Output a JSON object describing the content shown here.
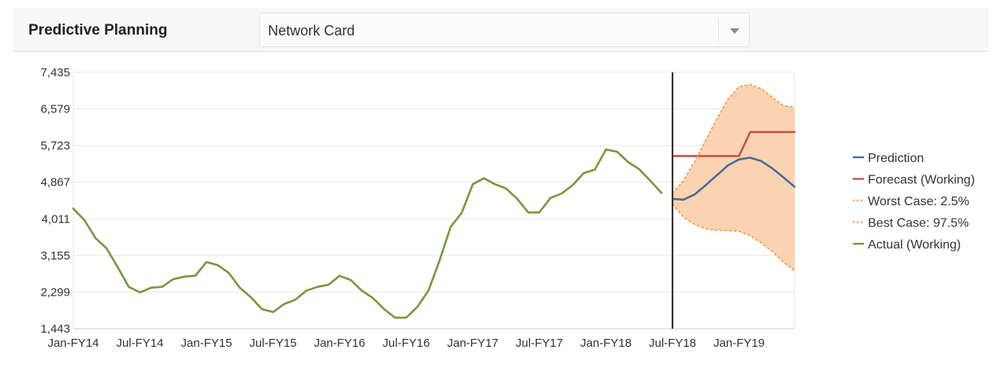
{
  "header": {
    "title": "Predictive Planning",
    "selected_item": "Network Card"
  },
  "chart_data": {
    "type": "line",
    "title": "",
    "xlabel": "",
    "ylabel": "",
    "ylim": [
      1443,
      7435
    ],
    "y_ticks": [
      "1,443",
      "2,299",
      "3,155",
      "4,011",
      "4,867",
      "5,723",
      "6,579",
      "7,435"
    ],
    "y_tick_values": [
      1443,
      2299,
      3155,
      4011,
      4867,
      5723,
      6579,
      7435
    ],
    "x_tick_labels": [
      "Jan-FY14",
      "Jul-FY14",
      "Jan-FY15",
      "Jul-FY15",
      "Jan-FY16",
      "Jul-FY16",
      "Jan-FY17",
      "Jul-FY17",
      "Jan-FY18",
      "Jul-FY18",
      "Jan-FY19"
    ],
    "period_labels": [
      "Jan-FY14",
      "Feb-FY14",
      "Mar-FY14",
      "Apr-FY14",
      "May-FY14",
      "Jun-FY14",
      "Jul-FY14",
      "Aug-FY14",
      "Sep-FY14",
      "Oct-FY14",
      "Nov-FY14",
      "Dec-FY14",
      "Jan-FY15",
      "Feb-FY15",
      "Mar-FY15",
      "Apr-FY15",
      "May-FY15",
      "Jun-FY15",
      "Jul-FY15",
      "Aug-FY15",
      "Sep-FY15",
      "Oct-FY15",
      "Nov-FY15",
      "Dec-FY15",
      "Jan-FY16",
      "Feb-FY16",
      "Mar-FY16",
      "Apr-FY16",
      "May-FY16",
      "Jun-FY16",
      "Jul-FY16",
      "Aug-FY16",
      "Sep-FY16",
      "Oct-FY16",
      "Nov-FY16",
      "Dec-FY16",
      "Jan-FY17",
      "Feb-FY17",
      "Mar-FY17",
      "Apr-FY17",
      "May-FY17",
      "Jun-FY17",
      "Jul-FY17",
      "Aug-FY17",
      "Sep-FY17",
      "Oct-FY17",
      "Nov-FY17",
      "Dec-FY17",
      "Jan-FY18",
      "Feb-FY18",
      "Mar-FY18",
      "Apr-FY18",
      "May-FY18",
      "Jun-FY18",
      "Jul-FY18",
      "Aug-FY18",
      "Sep-FY18",
      "Oct-FY18",
      "Nov-FY18",
      "Dec-FY18",
      "Jan-FY19",
      "Feb-FY19",
      "Mar-FY19",
      "Apr-FY19",
      "May-FY19",
      "Jun-FY19"
    ],
    "forecast_start": "Jul-FY18",
    "grid": true,
    "legend_position": "right",
    "series": [
      {
        "name": "Prediction",
        "color": "#4a6a9c",
        "style": "solid",
        "start": "Jul-FY18",
        "values": [
          4480,
          4460,
          4580,
          4800,
          5030,
          5260,
          5400,
          5440,
          5360,
          5190,
          4980,
          4760
        ]
      },
      {
        "name": "Forecast (Working)",
        "color": "#c5534f",
        "style": "solid",
        "start": "Jul-FY18",
        "values": [
          5480,
          5480,
          5480,
          5480,
          5480,
          5480,
          5480,
          6040,
          6040,
          6040,
          6040,
          6040
        ]
      },
      {
        "name": "Worst Case: 2.5%",
        "color": "#f2a65a",
        "style": "dotted",
        "start": "Jul-FY18",
        "values": [
          4350,
          4050,
          3880,
          3780,
          3740,
          3740,
          3720,
          3620,
          3450,
          3250,
          3000,
          2800
        ]
      },
      {
        "name": "Best Case: 97.5%",
        "color": "#f2a65a",
        "style": "dotted",
        "start": "Jul-FY18",
        "values": [
          4620,
          4900,
          5350,
          5850,
          6350,
          6800,
          7100,
          7150,
          7050,
          6850,
          6650,
          6620
        ]
      },
      {
        "name": "Actual (Working)",
        "color": "#76993a",
        "style": "solid",
        "start": "Jan-FY14",
        "values": [
          4250,
          3980,
          3560,
          3320,
          2880,
          2420,
          2290,
          2400,
          2420,
          2600,
          2660,
          2680,
          3000,
          2930,
          2750,
          2400,
          2180,
          1900,
          1830,
          2020,
          2120,
          2330,
          2420,
          2470,
          2680,
          2580,
          2330,
          2160,
          1900,
          1700,
          1700,
          1950,
          2330,
          3030,
          3820,
          4150,
          4820,
          4960,
          4820,
          4720,
          4480,
          4160,
          4160,
          4500,
          4600,
          4800,
          5080,
          5160,
          5630,
          5580,
          5340,
          5170,
          4900,
          4620
        ]
      }
    ],
    "band": {
      "color": "#f9cda4",
      "lower": "Worst Case: 2.5%",
      "upper": "Best Case: 97.5%"
    },
    "marker_line_color": "#222222",
    "legend": [
      "Prediction",
      "Forecast (Working)",
      "Worst Case: 2.5%",
      "Best Case: 97.5%",
      "Actual (Working)"
    ]
  }
}
